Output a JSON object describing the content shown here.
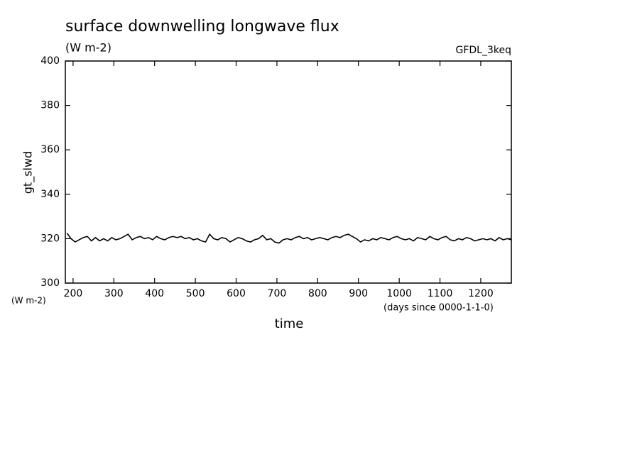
{
  "chart_data": {
    "type": "line",
    "title": "surface downwelling longwave flux",
    "subtitle": "(W m-2)",
    "annotation": "GFDL_3keq",
    "y_label": "gt_slwd",
    "y_units": "(W m-2)",
    "x_label": "time",
    "x_units": "(days since 0000-1-1-0)",
    "xlim": [
      181,
      1275
    ],
    "ylim": [
      300,
      400
    ],
    "xticks": [
      200,
      300,
      400,
      500,
      600,
      700,
      800,
      900,
      1000,
      1100,
      1200
    ],
    "yticks": [
      300,
      320,
      340,
      360,
      380,
      400
    ],
    "grid": false,
    "x": [
      185,
      195,
      205,
      215,
      225,
      235,
      245,
      255,
      265,
      275,
      285,
      295,
      305,
      315,
      325,
      335,
      345,
      355,
      365,
      375,
      385,
      395,
      405,
      415,
      425,
      435,
      445,
      455,
      465,
      475,
      485,
      495,
      505,
      515,
      525,
      535,
      545,
      555,
      565,
      575,
      585,
      595,
      605,
      615,
      625,
      635,
      645,
      655,
      665,
      675,
      685,
      695,
      705,
      715,
      725,
      735,
      745,
      755,
      765,
      775,
      785,
      795,
      805,
      815,
      825,
      835,
      845,
      855,
      865,
      875,
      885,
      895,
      905,
      915,
      925,
      935,
      945,
      955,
      965,
      975,
      985,
      995,
      1005,
      1015,
      1025,
      1035,
      1045,
      1055,
      1065,
      1075,
      1085,
      1095,
      1105,
      1115,
      1125,
      1135,
      1145,
      1155,
      1165,
      1175,
      1185,
      1195,
      1205,
      1215,
      1225,
      1235,
      1245,
      1255,
      1265,
      1275
    ],
    "series": [
      {
        "name": "gt_slwd",
        "color": "#000000",
        "values": [
          322.5,
          320,
          318.5,
          319.5,
          320.5,
          321,
          319,
          320.5,
          319,
          320,
          319,
          320.5,
          319.5,
          320,
          321,
          322,
          319.5,
          320.5,
          321,
          320,
          320.5,
          319.5,
          321,
          320,
          319.5,
          320.5,
          321,
          320.5,
          321,
          320,
          320.5,
          319.5,
          320,
          319,
          318.5,
          322,
          320,
          319.5,
          320.5,
          320,
          318.5,
          319.5,
          320.5,
          320,
          319,
          318.5,
          319.5,
          320,
          321.5,
          319.5,
          320,
          318.5,
          318,
          319.5,
          320,
          319.5,
          320.5,
          321,
          320,
          320.5,
          319.5,
          320,
          320.5,
          320,
          319.5,
          320.5,
          321,
          320.5,
          321.5,
          322,
          321,
          320,
          318.5,
          319.5,
          319,
          320,
          319.5,
          320.5,
          320,
          319.5,
          320.5,
          321,
          320,
          319.5,
          320,
          319,
          320.5,
          320,
          319.5,
          321,
          320,
          319.5,
          320.5,
          321,
          319.5,
          319,
          320,
          319.5,
          320.5,
          320,
          319,
          319.5,
          320,
          319.5,
          320,
          319,
          320.5,
          319.5,
          320,
          319.5
        ]
      }
    ]
  }
}
